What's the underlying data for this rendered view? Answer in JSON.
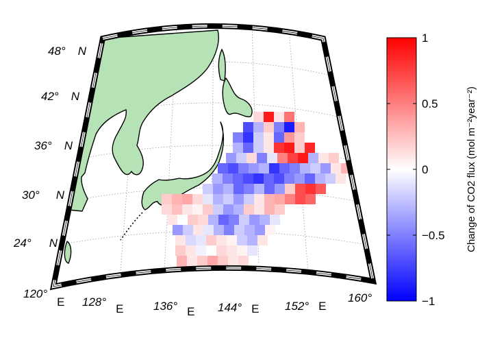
{
  "map": {
    "projection": "conic",
    "land_color": "#b5e3b5",
    "ocean_color": "#ffffff",
    "frame_style": "black-white-checker",
    "graticule": "dotted",
    "lat_labels": [
      {
        "deg": "48°",
        "hemi": "N"
      },
      {
        "deg": "42°",
        "hemi": "N"
      },
      {
        "deg": "36°",
        "hemi": "N"
      },
      {
        "deg": "30°",
        "hemi": "N"
      },
      {
        "deg": "24°",
        "hemi": "N"
      }
    ],
    "lon_labels": [
      {
        "deg": "120°",
        "hemi": "E"
      },
      {
        "deg": "128°",
        "hemi": "E"
      },
      {
        "deg": "136°",
        "hemi": "E"
      },
      {
        "deg": "144°",
        "hemi": "E"
      },
      {
        "deg": "152°",
        "hemi": "E"
      },
      {
        "deg": "160°",
        "hemi": ""
      }
    ]
  },
  "colorbar": {
    "title": "Change of CO2 flux (mol m⁻²year⁻²)",
    "ticks": [
      {
        "label": "1",
        "value": 1
      },
      {
        "label": "0.5",
        "value": 0.5
      },
      {
        "label": "0",
        "value": 0
      },
      {
        "label": "−0.5",
        "value": -0.5
      },
      {
        "label": "−1",
        "value": -1
      }
    ],
    "range": [
      -1,
      1
    ],
    "colormap": [
      "#0000ff",
      "#ffffff",
      "#ff0000"
    ]
  }
}
